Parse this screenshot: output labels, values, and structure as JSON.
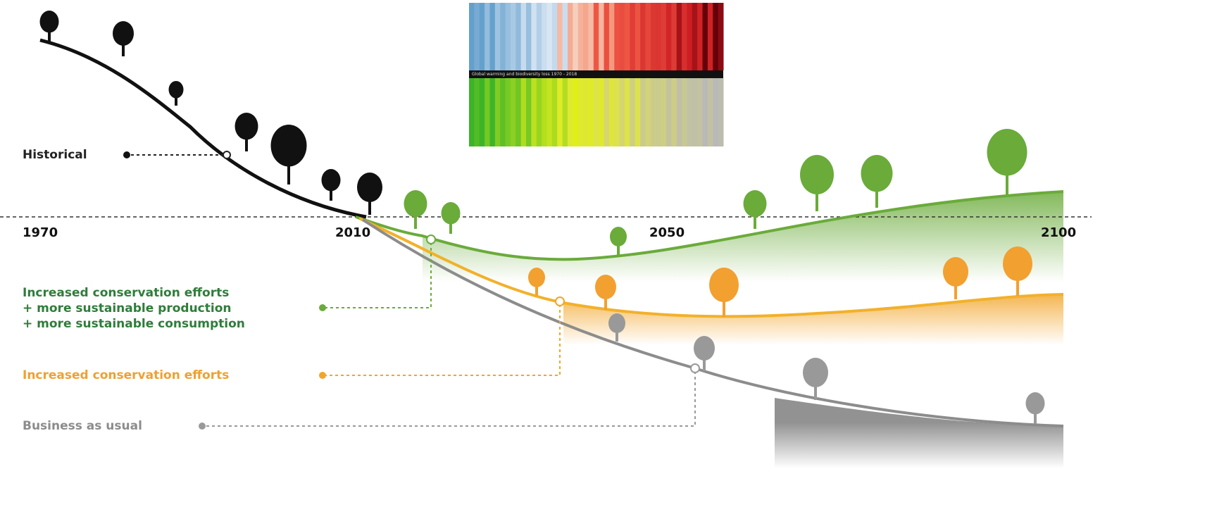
{
  "stripes_caption": "Global warming and biodiversity loss 1970 - 2018",
  "years": [
    "1970",
    "2010",
    "2050",
    "2100"
  ],
  "historical": {
    "label": "Historical"
  },
  "scenarios": [
    {
      "label_lines": [
        "Increased conservation efforts",
        "+ more sustainable production",
        "+ more sustainable consumption"
      ]
    },
    {
      "label_lines": [
        "Increased conservation efforts"
      ]
    },
    {
      "label_lines": [
        "Business as usual"
      ]
    }
  ]
}
